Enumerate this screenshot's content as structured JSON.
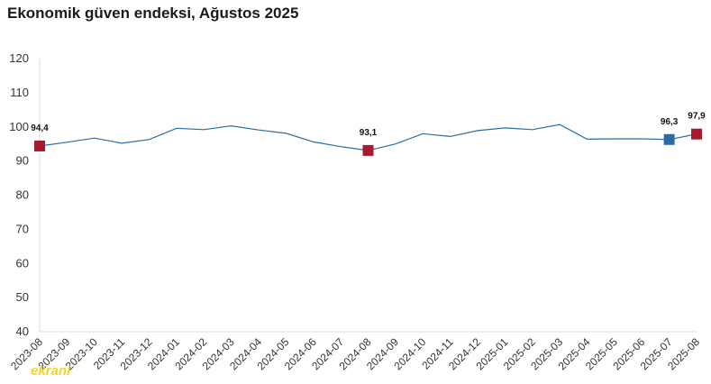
{
  "title": "Ekonomik güven endeksi, Ağustos 2025",
  "watermark": "ekrani",
  "chart_data": {
    "type": "line",
    "title": "Ekonomik güven endeksi, Ağustos 2025",
    "xlabel": "",
    "ylabel": "",
    "ylim": [
      40,
      120
    ],
    "yticks": [
      40,
      50,
      60,
      70,
      80,
      90,
      100,
      110,
      120
    ],
    "grid": false,
    "legend": "none",
    "categories": [
      "2023-08",
      "2023-09",
      "2023-10",
      "2023-11",
      "2023-12",
      "2024-01",
      "2024-02",
      "2024-03",
      "2024-04",
      "2024-05",
      "2024-06",
      "2024-07",
      "2024-08",
      "2024-09",
      "2024-10",
      "2024-11",
      "2024-12",
      "2025-01",
      "2025-02",
      "2025-03",
      "2025-04",
      "2025-05",
      "2025-06",
      "2025-07",
      "2025-08"
    ],
    "series": [
      {
        "values": [
          94.4,
          95.5,
          96.7,
          95.2,
          96.3,
          99.6,
          99.2,
          100.3,
          99.1,
          98.1,
          95.6,
          94.2,
          93.1,
          95.0,
          98.0,
          97.2,
          98.9,
          99.7,
          99.2,
          100.7,
          96.4,
          96.5,
          96.5,
          96.3,
          97.9
        ]
      }
    ],
    "highlights": [
      {
        "index": 0,
        "label": "94,4",
        "color": "#a6192e"
      },
      {
        "index": 12,
        "label": "93,1",
        "color": "#a6192e"
      },
      {
        "index": 23,
        "label": "96,3",
        "color": "#2b6ca3"
      },
      {
        "index": 24,
        "label": "97,9",
        "color": "#a6192e"
      }
    ],
    "line_color": "#2b6ca3",
    "axis_color": "#dddddd"
  }
}
